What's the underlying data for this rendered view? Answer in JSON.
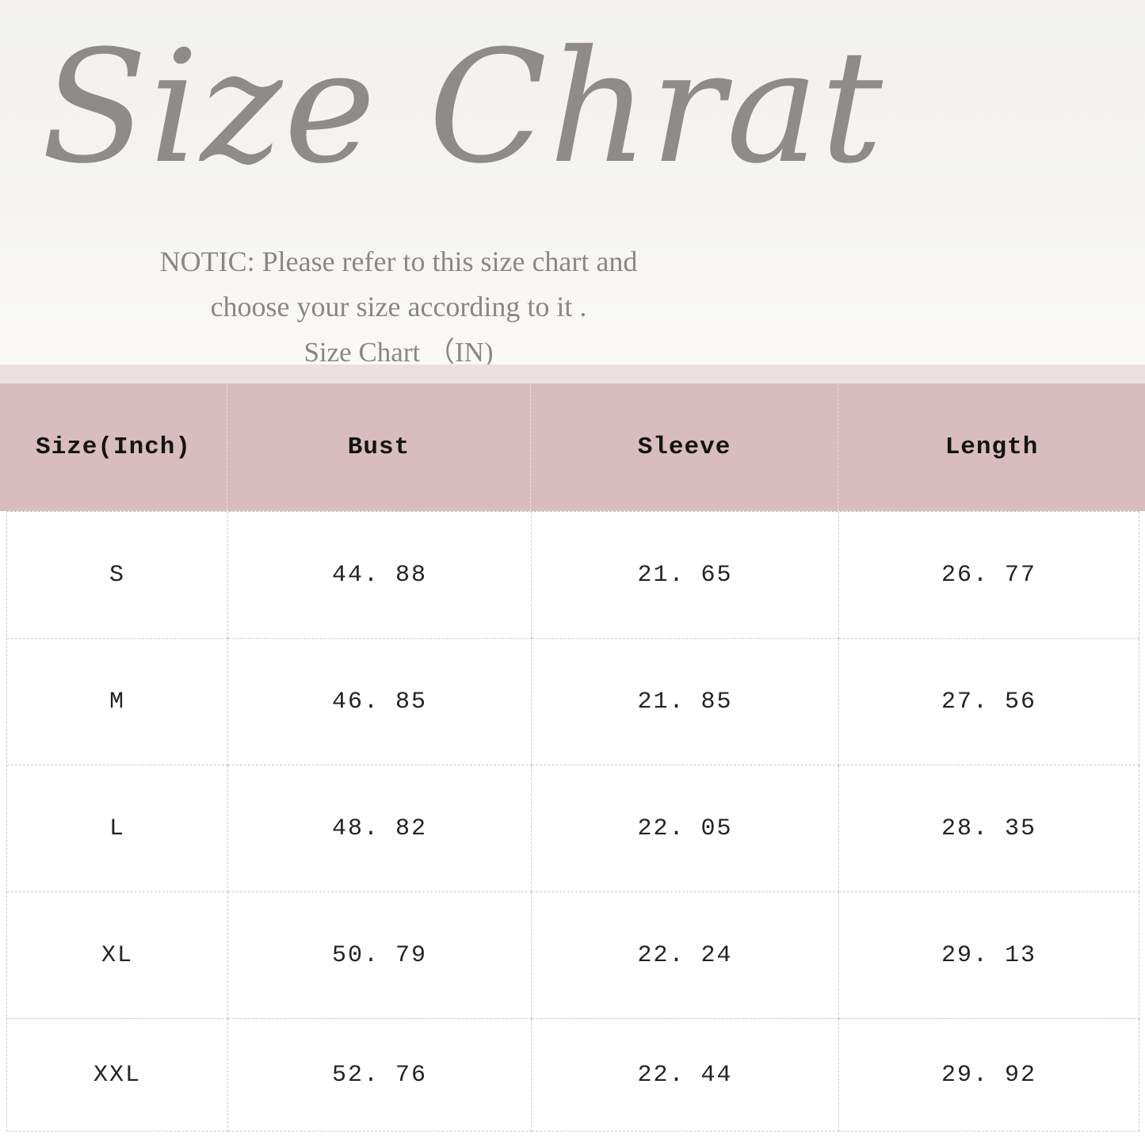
{
  "page": {
    "title": "Size Chrat",
    "notice_line1": "NOTIC: Please refer to this size chart and",
    "notice_line2": "choose your size according to it .",
    "subtitle": "Size Chart （IN)"
  },
  "table": {
    "headers": [
      "Size(Inch)",
      "Bust",
      "Sleeve",
      "Length"
    ],
    "rows": [
      [
        "S",
        "44. 88",
        "21. 65",
        "26. 77"
      ],
      [
        "M",
        "46. 85",
        "21. 85",
        "27. 56"
      ],
      [
        "L",
        "48. 82",
        "22. 05",
        "28. 35"
      ],
      [
        "XL",
        "50. 79",
        "22. 24",
        "29. 13"
      ],
      [
        "XXL",
        "52. 76",
        "22. 44",
        "29. 92"
      ]
    ]
  },
  "colors": {
    "header_bg": "#d8bcbf",
    "header_top_strip": "#ecdfe0",
    "title_text": "#8f8b8b",
    "notice_text": "#8a8785",
    "table_text": "#232323",
    "dashed_border": "#cbcbcb",
    "hero_bg": "#f4f2f0",
    "page_bg": "#ffffff"
  }
}
